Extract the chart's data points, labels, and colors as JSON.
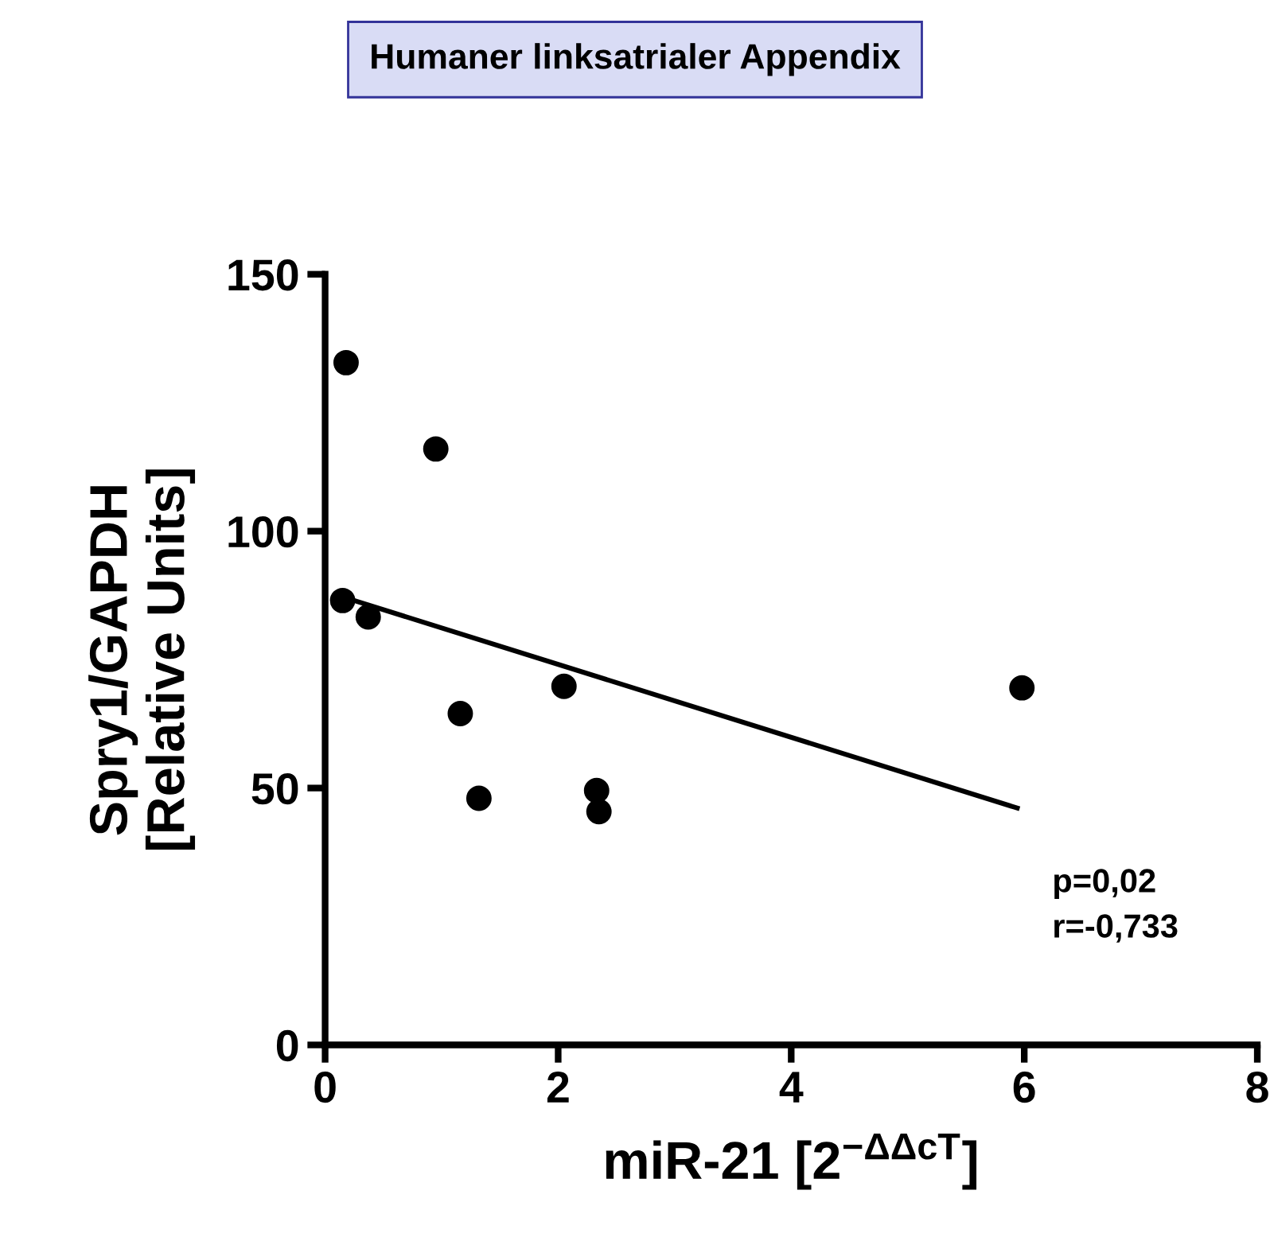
{
  "chart_data": {
    "type": "scatter",
    "title": "Humaner linksatrialer Appendix",
    "xlabel": "miR-21 [2$^{−ΔΔcT}$]",
    "ylabel": "Spry1/GAPDH\n[Relative Units]",
    "x": [
      0.18,
      0.15,
      0.37,
      0.95,
      1.16,
      1.32,
      2.05,
      2.33,
      2.35,
      5.98
    ],
    "series": [
      {
        "color": "#000000",
        "marker": "circle",
        "values": [
          132.8,
          86.5,
          83.3,
          116,
          64.5,
          48,
          69.8,
          49.5,
          45.4,
          69.5
        ]
      },
      {
        "type": "line",
        "color": "#000000",
        "x": [
          0.15,
          5.94
        ],
        "values": [
          87.2,
          46.1
        ]
      }
    ],
    "annotations": [
      "p=0,02\nr=-0,733"
    ],
    "xlim": [
      0,
      8
    ],
    "ylim": [
      0,
      150
    ],
    "xticks": [
      0,
      2,
      4,
      6,
      8
    ],
    "yticks": [
      0,
      50,
      100,
      150
    ],
    "grid": false,
    "legend": false
  }
}
